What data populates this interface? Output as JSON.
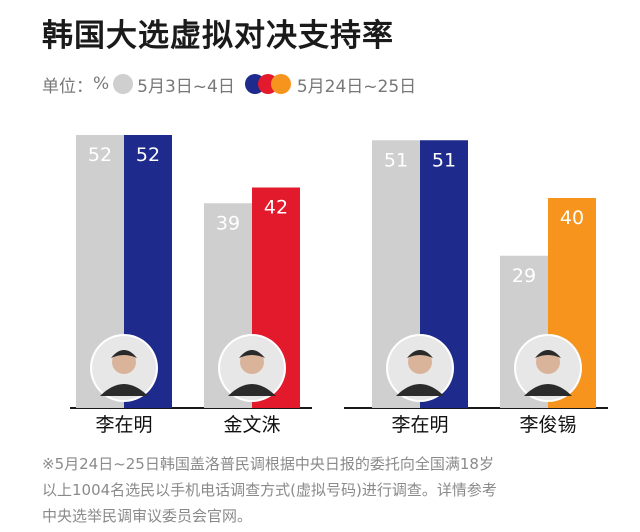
{
  "title": "韩国大选虚拟对决支持率",
  "legend": {
    "unit_label": "单位：",
    "unit": "%",
    "old_label": "5月3日~4日",
    "new_label": "5月24日~25日",
    "old_color": "#cfcfcf",
    "new_colors": [
      "#1e2a8c",
      "#e3192c",
      "#f7941d"
    ]
  },
  "chart_data": {
    "type": "bar",
    "title": "韩国大选虚拟对决支持率",
    "unit": "%",
    "series_labels": [
      "5月3日~4日",
      "5月24日~25日"
    ],
    "ylim": [
      0,
      60
    ],
    "groups": [
      {
        "candidates": [
          {
            "name": "李在明",
            "old": 52,
            "new": 52,
            "color": "#1e2a8c",
            "avatar": "person-avatar-lee-jae-myung"
          },
          {
            "name": "金文洙",
            "old": 39,
            "new": 42,
            "color": "#e3192c",
            "avatar": "person-avatar-kim-moon-soo"
          }
        ]
      },
      {
        "candidates": [
          {
            "name": "李在明",
            "old": 51,
            "new": 51,
            "color": "#1e2a8c",
            "avatar": "person-avatar-lee-jae-myung"
          },
          {
            "name": "李俊锡",
            "old": 29,
            "new": 40,
            "color": "#f7941d",
            "avatar": "person-avatar-lee-jun-seok"
          }
        ]
      }
    ]
  },
  "note": {
    "line1": "※5月24日~25日韩国盖洛普民调根据中央日报的委托向全国满18岁",
    "line2": "以上1004名选民以手机电话调查方式(虚拟号码)进行调查。详情参考",
    "line3": "中央选举民调审议委员会官网。"
  }
}
